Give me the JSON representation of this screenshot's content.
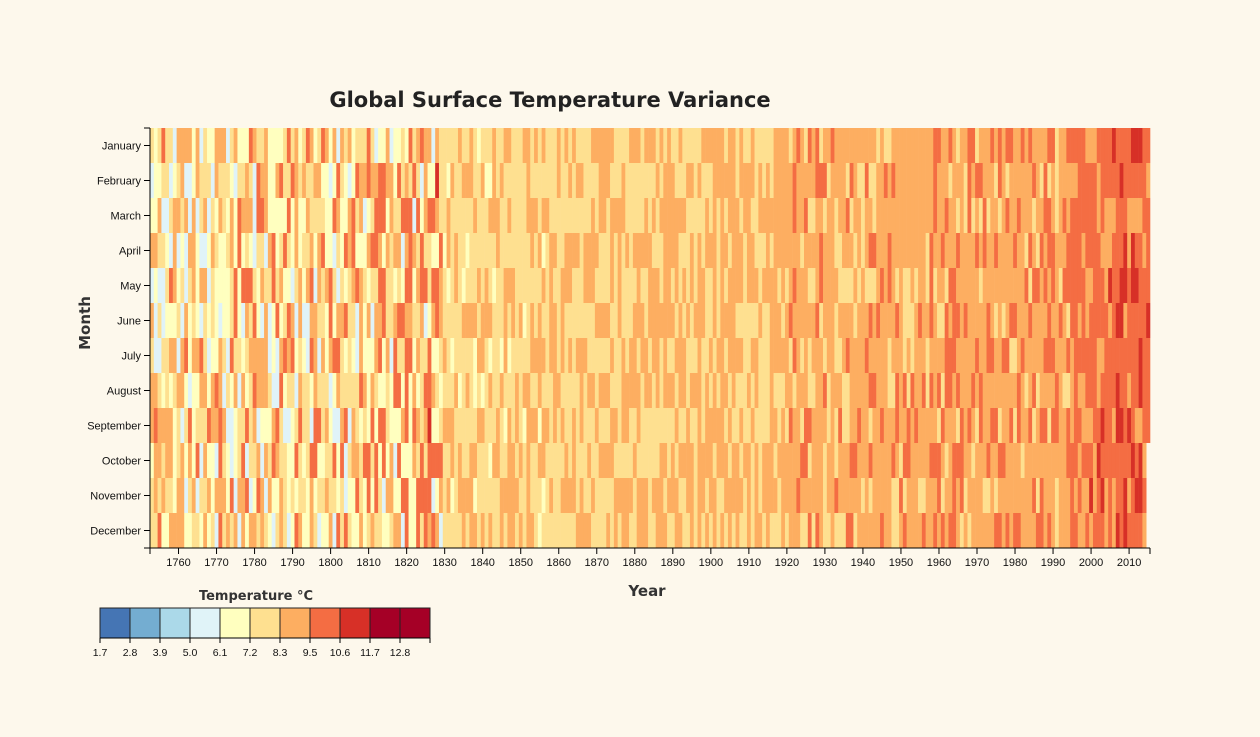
{
  "chart_data": {
    "type": "heatmap",
    "title": "Global Surface Temperature Variance",
    "xlabel": "Year",
    "ylabel": "Month",
    "x_range": [
      1753,
      2015
    ],
    "x_ticks": [
      "1760",
      "1770",
      "1780",
      "1790",
      "1800",
      "1810",
      "1820",
      "1830",
      "1840",
      "1850",
      "1860",
      "1870",
      "1880",
      "1890",
      "1900",
      "1910",
      "1920",
      "1930",
      "1940",
      "1950",
      "1960",
      "1970",
      "1980",
      "1990",
      "2000",
      "2010"
    ],
    "months": [
      "January",
      "February",
      "March",
      "April",
      "May",
      "June",
      "July",
      "August",
      "September",
      "October",
      "November",
      "December"
    ],
    "legend": {
      "title": "Temperature °C",
      "ticks": [
        "1.7",
        "2.8",
        "3.9",
        "5.0",
        "6.1",
        "7.2",
        "8.3",
        "9.5",
        "10.6",
        "11.7",
        "12.8"
      ],
      "colors": [
        "#4575b4",
        "#74add1",
        "#abd9e9",
        "#e0f3f8",
        "#ffffbf",
        "#fee090",
        "#fdae61",
        "#f46d43",
        "#d73027",
        "#a50026",
        "#a50026"
      ]
    },
    "grid": false,
    "values_note_visible": false
  }
}
